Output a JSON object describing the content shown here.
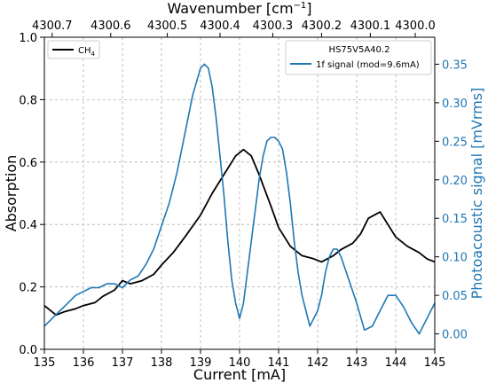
{
  "chart_data": {
    "type": "line",
    "xlabel": "Current [mA]",
    "top_xlabel": "Wavenumber [cm",
    "top_xlabel_sup": "−1",
    "top_xlabel_end": "]",
    "ylabel_left": "Absorption",
    "ylabel_right": "Photoacoustic signal [mVrms]",
    "xlim": [
      135,
      145
    ],
    "ylim_left": [
      0,
      1.0
    ],
    "ylim_right": [
      -0.02,
      0.385
    ],
    "x_ticks": [
      "135",
      "136",
      "137",
      "138",
      "139",
      "140",
      "141",
      "142",
      "143",
      "144",
      "145"
    ],
    "y_left_ticks": [
      "0.0",
      "0.2",
      "0.4",
      "0.6",
      "0.8",
      "1.0"
    ],
    "y_right_ticks": [
      "0.00",
      "0.05",
      "0.10",
      "0.15",
      "0.20",
      "0.25",
      "0.30",
      "0.35"
    ],
    "top_ticks": [
      {
        "label": "4300.7",
        "current": 135.2
      },
      {
        "label": "4300.6",
        "current": 136.7
      },
      {
        "label": "4300.5",
        "current": 138.15
      },
      {
        "label": "4300.4",
        "current": 139.5
      },
      {
        "label": "4300.3",
        "current": 140.85
      },
      {
        "label": "4300.2",
        "current": 142.1
      },
      {
        "label": "4300.1",
        "current": 143.35
      },
      {
        "label": "4300.0",
        "current": 144.5
      }
    ],
    "grid": true,
    "series": [
      {
        "name": "CH",
        "name_sub": "4",
        "axis": "left",
        "color": "#000000",
        "x": [
          135.0,
          135.3,
          135.5,
          135.8,
          136.0,
          136.3,
          136.5,
          136.8,
          137.0,
          137.2,
          137.5,
          137.8,
          138.0,
          138.3,
          138.6,
          139.0,
          139.3,
          139.6,
          139.9,
          140.1,
          140.3,
          140.5,
          140.8,
          141.0,
          141.3,
          141.6,
          141.9,
          142.1,
          142.4,
          142.6,
          142.9,
          143.1,
          143.3,
          143.6,
          143.8,
          144.0,
          144.3,
          144.6,
          144.8,
          145.0
        ],
        "y": [
          0.14,
          0.11,
          0.12,
          0.13,
          0.14,
          0.15,
          0.17,
          0.19,
          0.22,
          0.21,
          0.22,
          0.24,
          0.27,
          0.31,
          0.36,
          0.43,
          0.5,
          0.56,
          0.62,
          0.64,
          0.62,
          0.56,
          0.46,
          0.39,
          0.33,
          0.3,
          0.29,
          0.28,
          0.3,
          0.32,
          0.34,
          0.37,
          0.42,
          0.44,
          0.4,
          0.36,
          0.33,
          0.31,
          0.29,
          0.28
        ]
      },
      {
        "name": "1f signal (mod=9.6mA)",
        "axis": "right",
        "color": "#1f77b4",
        "x": [
          135.0,
          135.2,
          135.4,
          135.6,
          135.8,
          136.0,
          136.2,
          136.4,
          136.6,
          136.8,
          137.0,
          137.2,
          137.4,
          137.6,
          137.8,
          138.0,
          138.2,
          138.4,
          138.6,
          138.8,
          139.0,
          139.1,
          139.2,
          139.3,
          139.4,
          139.5,
          139.6,
          139.7,
          139.8,
          139.9,
          140.0,
          140.1,
          140.2,
          140.3,
          140.4,
          140.5,
          140.6,
          140.7,
          140.8,
          140.9,
          141.0,
          141.1,
          141.2,
          141.3,
          141.4,
          141.5,
          141.6,
          141.7,
          141.8,
          141.9,
          142.0,
          142.1,
          142.2,
          142.3,
          142.4,
          142.5,
          142.6,
          142.7,
          142.8,
          142.9,
          143.0,
          143.2,
          143.4,
          143.6,
          143.8,
          144.0,
          144.2,
          144.4,
          144.6,
          144.8,
          145.0
        ],
        "y": [
          0.01,
          0.02,
          0.03,
          0.04,
          0.05,
          0.055,
          0.06,
          0.06,
          0.065,
          0.065,
          0.06,
          0.07,
          0.075,
          0.09,
          0.11,
          0.14,
          0.17,
          0.21,
          0.26,
          0.31,
          0.345,
          0.35,
          0.345,
          0.32,
          0.28,
          0.23,
          0.18,
          0.12,
          0.07,
          0.04,
          0.02,
          0.04,
          0.08,
          0.12,
          0.16,
          0.2,
          0.23,
          0.25,
          0.255,
          0.255,
          0.25,
          0.24,
          0.21,
          0.17,
          0.12,
          0.08,
          0.05,
          0.03,
          0.01,
          0.02,
          0.03,
          0.05,
          0.08,
          0.1,
          0.11,
          0.11,
          0.1,
          0.085,
          0.07,
          0.055,
          0.04,
          0.005,
          0.01,
          0.03,
          0.05,
          0.05,
          0.035,
          0.015,
          0.0,
          0.02,
          0.04
        ]
      }
    ],
    "legend_left": {
      "position": "top-left",
      "label_main": "CH",
      "label_sub": "4",
      "label_suffix": ""
    },
    "legend_right": {
      "position": "top-right",
      "title": "HS75V5A40.2",
      "label": "1f signal (mod=9.6mA)"
    }
  }
}
